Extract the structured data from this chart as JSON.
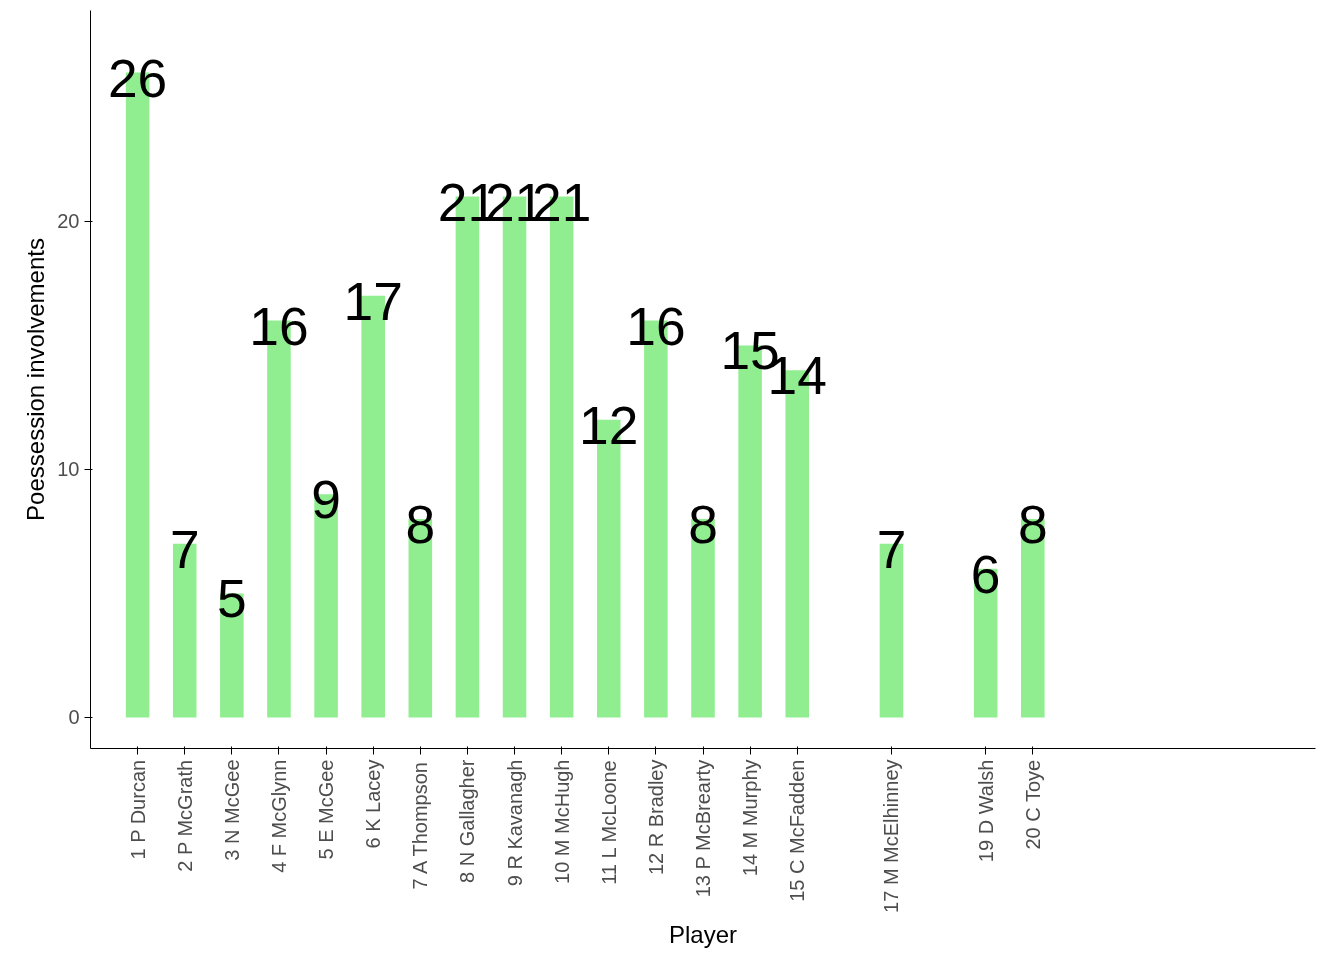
{
  "chart_data": {
    "type": "bar",
    "xlabel": "Player",
    "ylabel": "Poessession involvements",
    "x": [
      1,
      2,
      3,
      4,
      5,
      6,
      7,
      8,
      9,
      10,
      11,
      12,
      13,
      14,
      15,
      17,
      19,
      20
    ],
    "values": [
      26,
      7,
      5,
      16,
      9,
      17,
      8,
      21,
      21,
      21,
      12,
      16,
      8,
      15,
      14,
      7,
      6,
      8
    ],
    "color": "#90ee90",
    "data_labels": true,
    "grid": false,
    "xlim": [
      0,
      26
    ],
    "ylim": [
      -1.25,
      28.5
    ],
    "xticks": [
      {
        "value": 1,
        "label": "1 P Durcan"
      },
      {
        "value": 2,
        "label": "2 P McGrath"
      },
      {
        "value": 3,
        "label": "3 N McGee"
      },
      {
        "value": 4,
        "label": "4 F McGlynn"
      },
      {
        "value": 5,
        "label": "5 E McGee"
      },
      {
        "value": 6,
        "label": "6 K Lacey"
      },
      {
        "value": 7,
        "label": "7 A Thompson"
      },
      {
        "value": 8,
        "label": "8 N Gallagher"
      },
      {
        "value": 9,
        "label": "9 R Kavanagh"
      },
      {
        "value": 10,
        "label": "10 M McHugh"
      },
      {
        "value": 11,
        "label": "11 L McLoone"
      },
      {
        "value": 12,
        "label": "12 R Bradley"
      },
      {
        "value": 13,
        "label": "13 P McBrearty"
      },
      {
        "value": 14,
        "label": "14 M Murphy"
      },
      {
        "value": 15,
        "label": "15 C McFadden"
      },
      {
        "value": 17,
        "label": "17 M McElhinney"
      },
      {
        "value": 19,
        "label": "19 D Walsh"
      },
      {
        "value": 20,
        "label": "20 C Toye"
      }
    ],
    "yticks": [
      0,
      10,
      20
    ]
  }
}
